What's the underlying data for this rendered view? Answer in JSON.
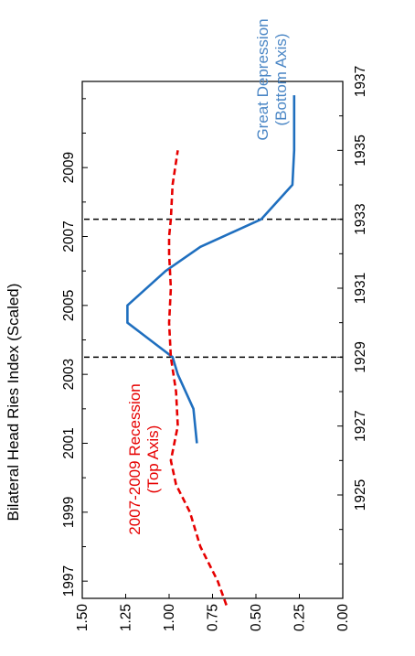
{
  "chart_data": {
    "type": "line",
    "ylabel": "Bilateral Head Ries Index (Scaled)",
    "ylim": [
      0,
      1.5
    ],
    "y_ticks": [
      {
        "value": 1.5,
        "label": "1.50"
      },
      {
        "value": 1.25,
        "label": "1.25"
      },
      {
        "value": 1.0,
        "label": "1.00"
      },
      {
        "value": 0.75,
        "label": "0.75"
      },
      {
        "value": 0.5,
        "label": "0.50"
      },
      {
        "value": 0.25,
        "label": "0.25"
      },
      {
        "value": 0.0,
        "label": "0.00"
      }
    ],
    "top_axis": {
      "range": [
        1996.5,
        2011.5
      ],
      "tick_labels": [
        {
          "value": 1997,
          "label": "1997"
        },
        {
          "value": 1999,
          "label": "1999"
        },
        {
          "value": 2001,
          "label": "2001"
        },
        {
          "value": 2003,
          "label": "2003"
        },
        {
          "value": 2005,
          "label": "2005"
        },
        {
          "value": 2007,
          "label": "2007"
        },
        {
          "value": 2009,
          "label": "2009"
        }
      ],
      "minor_ticks": [
        1998,
        2000,
        2002,
        2004,
        2006,
        2008,
        2010,
        2011
      ]
    },
    "bottom_axis": {
      "range": [
        1922,
        1937
      ],
      "tick_labels": [
        {
          "value": 1925,
          "label": "1925"
        },
        {
          "value": 1927,
          "label": "1927"
        },
        {
          "value": 1929,
          "label": "1929"
        },
        {
          "value": 1931,
          "label": "1931"
        },
        {
          "value": 1933,
          "label": "1933"
        },
        {
          "value": 1935,
          "label": "1935"
        },
        {
          "value": 1937,
          "label": "1937"
        }
      ],
      "minor_ticks": [
        1922,
        1923,
        1924,
        1926,
        1928,
        1930,
        1932,
        1934,
        1936
      ]
    },
    "series": [
      {
        "axis": "bottom",
        "color": "#1f6fbf",
        "style": "solid",
        "points": [
          {
            "x": 1926.5,
            "y": 0.84
          },
          {
            "x": 1927.5,
            "y": 0.86
          },
          {
            "x": 1928.5,
            "y": 0.95
          },
          {
            "x": 1929.0,
            "y": 0.98
          },
          {
            "x": 1929.5,
            "y": 1.11
          },
          {
            "x": 1930.0,
            "y": 1.24
          },
          {
            "x": 1930.5,
            "y": 1.24
          },
          {
            "x": 1931.5,
            "y": 1.02
          },
          {
            "x": 1932.2,
            "y": 0.82
          },
          {
            "x": 1933.0,
            "y": 0.47
          },
          {
            "x": 1934.0,
            "y": 0.29
          },
          {
            "x": 1935.0,
            "y": 0.28
          },
          {
            "x": 1936.0,
            "y": 0.28
          },
          {
            "x": 1936.6,
            "y": 0.28
          }
        ]
      },
      {
        "axis": "top",
        "color": "#e60000",
        "style": "dashed",
        "points": [
          {
            "x": 1996.3,
            "y": 0.67
          },
          {
            "x": 1997.0,
            "y": 0.72
          },
          {
            "x": 1998.0,
            "y": 0.82
          },
          {
            "x": 1998.5,
            "y": 0.85
          },
          {
            "x": 1999.0,
            "y": 0.88
          },
          {
            "x": 1999.8,
            "y": 0.96
          },
          {
            "x": 2000.5,
            "y": 0.99
          },
          {
            "x": 2001.5,
            "y": 0.95
          },
          {
            "x": 2002.5,
            "y": 0.96
          },
          {
            "x": 2003.5,
            "y": 0.99
          },
          {
            "x": 2004.5,
            "y": 1.0
          },
          {
            "x": 2005.5,
            "y": 0.99
          },
          {
            "x": 2006.5,
            "y": 1.0
          },
          {
            "x": 2007.0,
            "y": 1.0
          },
          {
            "x": 2007.5,
            "y": 0.99
          },
          {
            "x": 2008.5,
            "y": 0.98
          },
          {
            "x": 2009.5,
            "y": 0.95
          }
        ]
      }
    ],
    "vlines": [
      {
        "axis": "bottom",
        "x": 1929.0
      },
      {
        "axis": "bottom",
        "x": 1933.0
      }
    ],
    "annotations": {
      "depression_line1": "Great Depression",
      "depression_line2": "(Bottom Axis)",
      "recession_line1": "2007-2009 Recession",
      "recession_line2": "(Top Axis)"
    },
    "grid": false
  }
}
